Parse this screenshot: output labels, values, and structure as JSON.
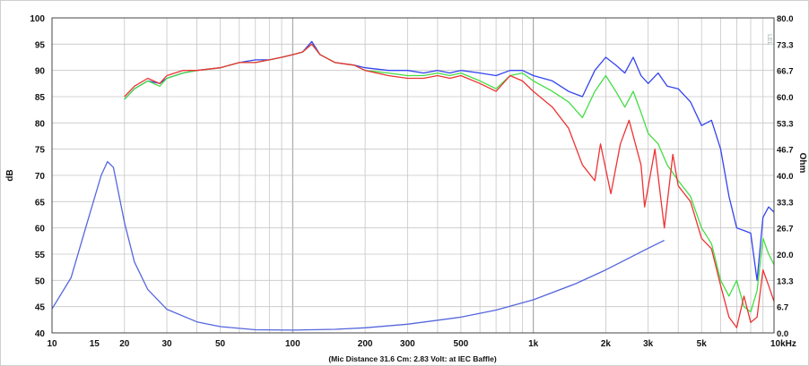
{
  "chart_data": {
    "type": "line",
    "title": "",
    "xlabel": "(Mic Distance 31.6 Cm: 2.83 Volt: at IEC Baffle)",
    "ylabel": "dB",
    "y2label": "Ohm",
    "x_scale": "log",
    "xlim": [
      10,
      10000
    ],
    "ylim": [
      40,
      100
    ],
    "y2lim": [
      0,
      80
    ],
    "grid": true,
    "corner_mark": "LEL",
    "x_ticks": [
      {
        "value": 10,
        "label": "10"
      },
      {
        "value": 15,
        "label": "15"
      },
      {
        "value": 20,
        "label": "20"
      },
      {
        "value": 30,
        "label": "30"
      },
      {
        "value": 50,
        "label": "50"
      },
      {
        "value": 100,
        "label": "100"
      },
      {
        "value": 200,
        "label": "200"
      },
      {
        "value": 300,
        "label": "300"
      },
      {
        "value": 500,
        "label": "500"
      },
      {
        "value": 1000,
        "label": "1k"
      },
      {
        "value": 2000,
        "label": "2k"
      },
      {
        "value": 3000,
        "label": "3k"
      },
      {
        "value": 5000,
        "label": "5k"
      },
      {
        "value": 10000,
        "label": "10kHz"
      }
    ],
    "y_ticks": [
      100,
      95,
      90,
      85,
      80,
      75,
      70,
      65,
      60,
      55,
      50,
      45,
      40
    ],
    "y2_ticks": [
      "80.0",
      "73.3",
      "66.7",
      "60.0",
      "53.3",
      "46.7",
      "40.0",
      "33.3",
      "26.7",
      "20.0",
      "13.3",
      "6.7",
      "0.0"
    ],
    "series": [
      {
        "color": "#3344ee",
        "axis": "left",
        "points": [
          [
            20,
            84.5
          ],
          [
            22,
            86.5
          ],
          [
            25,
            88
          ],
          [
            28,
            87.5
          ],
          [
            30,
            88.5
          ],
          [
            35,
            89.5
          ],
          [
            40,
            90
          ],
          [
            50,
            90.5
          ],
          [
            60,
            91.5
          ],
          [
            70,
            92
          ],
          [
            80,
            92
          ],
          [
            90,
            92.5
          ],
          [
            100,
            93
          ],
          [
            110,
            93.5
          ],
          [
            120,
            95.5
          ],
          [
            130,
            93
          ],
          [
            150,
            91.5
          ],
          [
            180,
            91
          ],
          [
            200,
            90.5
          ],
          [
            250,
            90
          ],
          [
            300,
            90
          ],
          [
            350,
            89.5
          ],
          [
            400,
            90
          ],
          [
            450,
            89.5
          ],
          [
            500,
            90
          ],
          [
            600,
            89.5
          ],
          [
            700,
            89
          ],
          [
            800,
            90
          ],
          [
            900,
            90
          ],
          [
            1000,
            89
          ],
          [
            1200,
            88
          ],
          [
            1400,
            86
          ],
          [
            1600,
            85
          ],
          [
            1800,
            90
          ],
          [
            2000,
            92.5
          ],
          [
            2200,
            91
          ],
          [
            2400,
            89.5
          ],
          [
            2600,
            92.5
          ],
          [
            2800,
            89
          ],
          [
            3000,
            87.5
          ],
          [
            3300,
            89.5
          ],
          [
            3600,
            87
          ],
          [
            4000,
            86.5
          ],
          [
            4500,
            84
          ],
          [
            5000,
            79.5
          ],
          [
            5500,
            80.5
          ],
          [
            6000,
            75
          ],
          [
            6500,
            66
          ],
          [
            7000,
            60
          ],
          [
            7500,
            59.5
          ],
          [
            8000,
            59
          ],
          [
            8500,
            50
          ],
          [
            9000,
            62
          ],
          [
            9500,
            64
          ],
          [
            10000,
            63
          ]
        ]
      },
      {
        "color": "#44dd44",
        "axis": "left",
        "points": [
          [
            20,
            84.5
          ],
          [
            22,
            86.5
          ],
          [
            25,
            88
          ],
          [
            28,
            87
          ],
          [
            30,
            88.5
          ],
          [
            35,
            89.5
          ],
          [
            40,
            90
          ],
          [
            50,
            90.5
          ],
          [
            60,
            91.5
          ],
          [
            70,
            91.5
          ],
          [
            80,
            92
          ],
          [
            90,
            92.5
          ],
          [
            100,
            93
          ],
          [
            110,
            93.5
          ],
          [
            120,
            95
          ],
          [
            130,
            93
          ],
          [
            150,
            91.5
          ],
          [
            180,
            91
          ],
          [
            200,
            90
          ],
          [
            250,
            89.5
          ],
          [
            300,
            89
          ],
          [
            350,
            89
          ],
          [
            400,
            89.5
          ],
          [
            450,
            89
          ],
          [
            500,
            89.5
          ],
          [
            600,
            88
          ],
          [
            700,
            86.5
          ],
          [
            800,
            89
          ],
          [
            900,
            89.5
          ],
          [
            1000,
            88
          ],
          [
            1200,
            86
          ],
          [
            1400,
            84
          ],
          [
            1600,
            81
          ],
          [
            1800,
            86
          ],
          [
            2000,
            89
          ],
          [
            2200,
            86
          ],
          [
            2400,
            83
          ],
          [
            2600,
            86
          ],
          [
            2800,
            82
          ],
          [
            3000,
            78
          ],
          [
            3300,
            76
          ],
          [
            3600,
            72
          ],
          [
            4000,
            69
          ],
          [
            4500,
            66
          ],
          [
            5000,
            60
          ],
          [
            5500,
            57
          ],
          [
            6000,
            50
          ],
          [
            6500,
            47
          ],
          [
            7000,
            50
          ],
          [
            7500,
            45
          ],
          [
            8000,
            44
          ],
          [
            8500,
            48
          ],
          [
            9000,
            58
          ],
          [
            9500,
            55
          ],
          [
            10000,
            53
          ]
        ]
      },
      {
        "color": "#ee3333",
        "axis": "left",
        "points": [
          [
            20,
            85
          ],
          [
            22,
            87
          ],
          [
            25,
            88.5
          ],
          [
            28,
            87.5
          ],
          [
            30,
            89
          ],
          [
            35,
            90
          ],
          [
            40,
            90
          ],
          [
            50,
            90.5
          ],
          [
            60,
            91.5
          ],
          [
            70,
            91.5
          ],
          [
            80,
            92
          ],
          [
            90,
            92.5
          ],
          [
            100,
            93
          ],
          [
            110,
            93.5
          ],
          [
            120,
            95
          ],
          [
            130,
            93
          ],
          [
            150,
            91.5
          ],
          [
            180,
            91
          ],
          [
            200,
            90
          ],
          [
            250,
            89
          ],
          [
            300,
            88.5
          ],
          [
            350,
            88.5
          ],
          [
            400,
            89
          ],
          [
            450,
            88.5
          ],
          [
            500,
            89
          ],
          [
            600,
            87.5
          ],
          [
            700,
            86
          ],
          [
            800,
            89
          ],
          [
            900,
            88
          ],
          [
            1000,
            86
          ],
          [
            1200,
            83
          ],
          [
            1400,
            79
          ],
          [
            1600,
            72
          ],
          [
            1800,
            69
          ],
          [
            1900,
            76
          ],
          [
            2100,
            66.5
          ],
          [
            2300,
            76
          ],
          [
            2500,
            80.5
          ],
          [
            2800,
            72
          ],
          [
            2900,
            64
          ],
          [
            3200,
            75
          ],
          [
            3500,
            60
          ],
          [
            3800,
            74
          ],
          [
            4000,
            68
          ],
          [
            4500,
            65
          ],
          [
            5000,
            58
          ],
          [
            5500,
            56
          ],
          [
            6000,
            49
          ],
          [
            6500,
            43
          ],
          [
            7000,
            41
          ],
          [
            7500,
            47
          ],
          [
            8000,
            42
          ],
          [
            8500,
            43
          ],
          [
            9000,
            52
          ],
          [
            9500,
            49
          ],
          [
            10000,
            46
          ]
        ]
      },
      {
        "color": "#5566dd",
        "axis": "right",
        "points": [
          [
            10,
            6.1
          ],
          [
            12,
            14
          ],
          [
            14,
            28
          ],
          [
            16,
            40
          ],
          [
            17,
            43.5
          ],
          [
            18,
            42
          ],
          [
            20,
            28
          ],
          [
            22,
            18
          ],
          [
            25,
            11
          ],
          [
            30,
            6
          ],
          [
            40,
            2.8
          ],
          [
            50,
            1.6
          ],
          [
            70,
            0.8
          ],
          [
            100,
            0.7
          ],
          [
            150,
            0.9
          ],
          [
            200,
            1.3
          ],
          [
            300,
            2.2
          ],
          [
            500,
            4
          ],
          [
            700,
            5.8
          ],
          [
            1000,
            8.4
          ],
          [
            1500,
            12.5
          ],
          [
            2000,
            16
          ],
          [
            3000,
            21.5
          ],
          [
            3500,
            23.5
          ]
        ]
      }
    ]
  }
}
